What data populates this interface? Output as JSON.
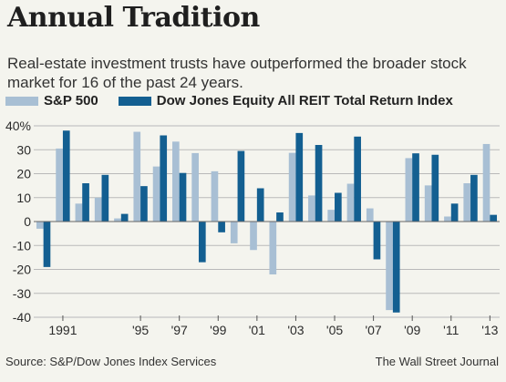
{
  "title": "Annual Tradition",
  "subtitle": "Real-estate investment trusts have outperformed the broader stock market for 16 of the past 24 years.",
  "source": "Source: S&P/Dow Jones Index Services",
  "credit": "The Wall Street Journal",
  "colors": {
    "sp500": "#a8bfd4",
    "reit": "#135f91",
    "grid": "#b9b9b9",
    "zero": "#666666"
  },
  "chart_data": {
    "type": "bar",
    "title": "Annual Tradition",
    "categories": [
      "1990",
      "1991",
      "1992",
      "1993",
      "1994",
      "1995",
      "1996",
      "1997",
      "1998",
      "1999",
      "2000",
      "2001",
      "2002",
      "2003",
      "2004",
      "2005",
      "2006",
      "2007",
      "2008",
      "2009",
      "2010",
      "2011",
      "2012",
      "2013"
    ],
    "series": [
      {
        "name": "S&P 500",
        "values": [
          -3,
          30.5,
          7.5,
          10,
          1.3,
          37.5,
          23,
          33.4,
          28.6,
          21,
          -9.1,
          -11.9,
          -22.1,
          28.7,
          10.9,
          4.9,
          15.8,
          5.5,
          -37,
          26.5,
          15.1,
          2.1,
          16,
          32.4
        ]
      },
      {
        "name": "Dow Jones Equity All REIT Total Return Index",
        "values": [
          -19,
          38,
          16,
          19.5,
          3.2,
          14.8,
          36,
          20.3,
          -17,
          -4.5,
          29.5,
          13.9,
          3.8,
          37,
          32,
          12,
          35.5,
          -15.8,
          -38,
          28.5,
          27.9,
          7.5,
          19.5,
          2.8
        ]
      }
    ],
    "ylim": [
      -40,
      40
    ],
    "yticks": [
      40,
      30,
      20,
      10,
      0,
      -10,
      -20,
      -30,
      -40
    ],
    "ytick_labels": [
      "40%",
      "30",
      "20",
      "10",
      "0",
      "-10",
      "-20",
      "-30",
      "-40"
    ],
    "xtick_labels": [
      {
        "index": 1,
        "label": "1991"
      },
      {
        "index": 5,
        "label": "'95"
      },
      {
        "index": 7,
        "label": "'97"
      },
      {
        "index": 9,
        "label": "'99"
      },
      {
        "index": 11,
        "label": "'01"
      },
      {
        "index": 13,
        "label": "'03"
      },
      {
        "index": 15,
        "label": "'05"
      },
      {
        "index": 17,
        "label": "'07"
      },
      {
        "index": 19,
        "label": "'09"
      },
      {
        "index": 21,
        "label": "'11"
      },
      {
        "index": 23,
        "label": "'13"
      }
    ],
    "grid": true,
    "legend": "top-left"
  }
}
